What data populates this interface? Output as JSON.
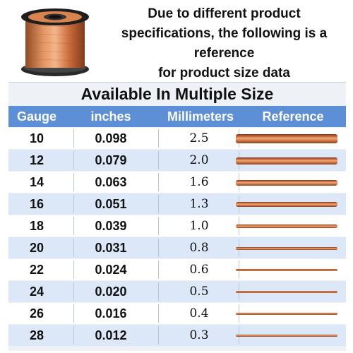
{
  "note": {
    "lines": [
      "Due to different product",
      "specifications, the following is a reference",
      "for product size data"
    ]
  },
  "table": {
    "title": "Available In Multiple Size",
    "headers": [
      "Gauge",
      "inches",
      "Millimeters",
      "Reference"
    ],
    "rows": [
      {
        "gauge": "10",
        "inches": "0.098",
        "mm": "2.5"
      },
      {
        "gauge": "12",
        "inches": "0.079",
        "mm": "2.0"
      },
      {
        "gauge": "14",
        "inches": "0.063",
        "mm": "1.6"
      },
      {
        "gauge": "16",
        "inches": "0.051",
        "mm": "1.3"
      },
      {
        "gauge": "18",
        "inches": "0.039",
        "mm": "1.0"
      },
      {
        "gauge": "20",
        "inches": "0.031",
        "mm": "0.8"
      },
      {
        "gauge": "22",
        "inches": "0.024",
        "mm": "0.6"
      },
      {
        "gauge": "24",
        "inches": "0.020",
        "mm": "0.5"
      },
      {
        "gauge": "26",
        "inches": "0.016",
        "mm": "0.4"
      },
      {
        "gauge": "28",
        "inches": "0.012",
        "mm": "0.3"
      }
    ]
  },
  "colors": {
    "header_bg": "#5d8fd6",
    "row_alt_bg": "#dce8f8",
    "copper": "#d7804d"
  },
  "icons": {
    "spool": "copper-wire-spool-icon",
    "wire": "copper-wire-sample-icon"
  }
}
